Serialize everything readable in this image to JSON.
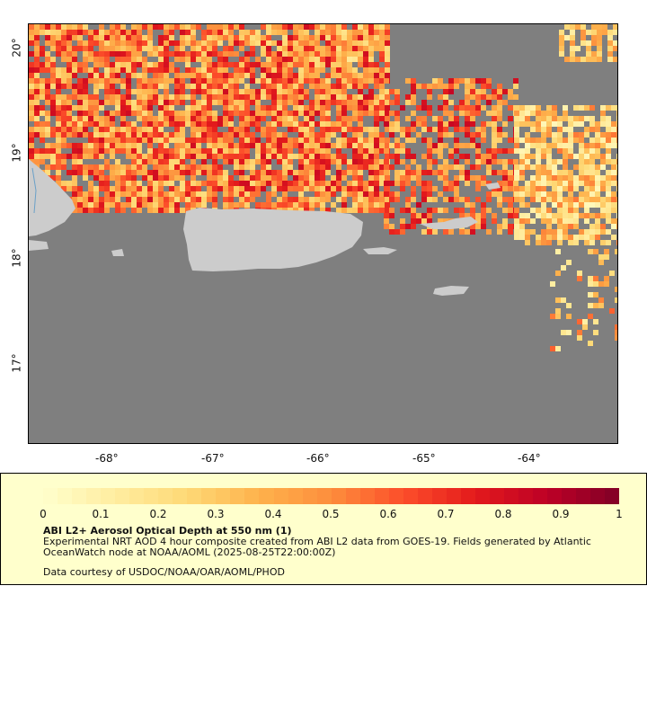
{
  "map": {
    "lat_labels": [
      "20°",
      "19°",
      "18°",
      "17°"
    ],
    "lon_labels": [
      "-68°",
      "-67°",
      "-66°",
      "-65°",
      "-64°"
    ],
    "lon_range": [
      -68.75,
      -63.1
    ],
    "lat_range": [
      16.3,
      20.3
    ],
    "colors": {
      "no_data": "#7f7f7f",
      "land": "#cccccc",
      "water_outline": "#6aa0c8"
    }
  },
  "legend": {
    "ticks": [
      "0",
      "0.1",
      "0.2",
      "0.3",
      "0.4",
      "0.5",
      "0.6",
      "0.7",
      "0.8",
      "0.9",
      "1"
    ],
    "colormap": [
      "#ffffcc",
      "#ffeda0",
      "#fed976",
      "#feb24c",
      "#fd8d3c",
      "#fc4e2a",
      "#e31a1c",
      "#bd0026",
      "#800026"
    ],
    "title": "ABI L2+ Aerosol Optical Depth at 550 nm (1)",
    "description": "Experimental NRT AOD 4 hour composite created from ABI L2 data from GOES-19. Fields generated by Atlantic OceanWatch node at NOAA/AOML (2025-08-25T22:00:00Z)",
    "credit": "Data courtesy of USDOC/NOAA/OAR/AOML/PHOD"
  }
}
